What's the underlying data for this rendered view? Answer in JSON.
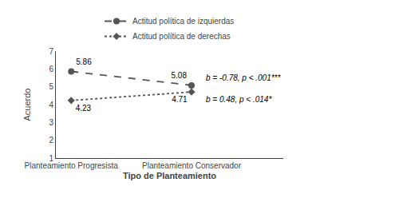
{
  "chart_data": {
    "type": "line",
    "categories": [
      "Planteamiento Progresista",
      "Planteamiento Conservador"
    ],
    "series": [
      {
        "name": "Actitud política de izquierdas",
        "color": "#555555",
        "values": [
          5.86,
          5.08
        ],
        "line_style": "dashed",
        "marker": "circle"
      },
      {
        "name": "Actitud política de derechas",
        "color": "#555555",
        "values": [
          4.23,
          4.71
        ],
        "line_style": "dotted",
        "marker": "diamond"
      }
    ],
    "xlabel": "Tipo de Planteamiento",
    "ylabel": "Acuerdo",
    "ylim": [
      1,
      7
    ],
    "yticks": [
      1,
      2,
      3,
      4,
      5,
      6,
      7
    ],
    "grid": false,
    "legend": "top",
    "data_labels": true,
    "annotations": [
      "b = -0.78, p < .001***",
      "b = 0.48, p < .014*"
    ]
  }
}
